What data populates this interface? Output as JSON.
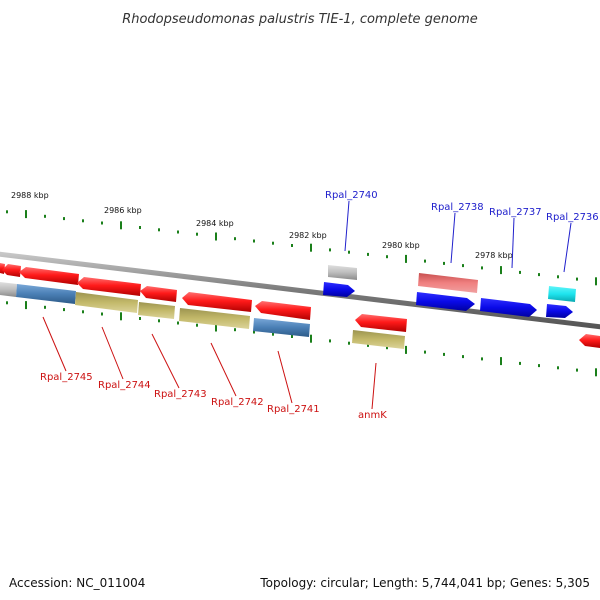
{
  "title": "Rhodopseudomonas palustris TIE-1, complete genome",
  "footer": {
    "accession": "Accession: NC_011004",
    "info": "Topology: circular; Length: 5,744,041 bp; Genes: 5,305"
  },
  "ruler_labels": [
    "2988 kbp",
    "2986 kbp",
    "2984 kbp",
    "2982 kbp",
    "2980 kbp",
    "2978 kbp"
  ],
  "gene_labels": {
    "top": [
      "Rpal_2740",
      "Rpal_2738",
      "Rpal_2737",
      "Rpal_2736"
    ],
    "bottom": [
      "Rpal_2745",
      "Rpal_2744",
      "Rpal_2743",
      "Rpal_2742",
      "Rpal_2741",
      "anmK"
    ]
  },
  "colors": {
    "red": "#ff2020",
    "salmon": "#f07070",
    "blue": "#1a1aee",
    "steel": "#4a7fb5",
    "khaki": "#c3b96a",
    "grey": "#b8b8b8",
    "cyan": "#22e8f0",
    "tick": "#1a7f1a",
    "label_blue": "#2020cc",
    "label_red": "#cc1111"
  }
}
